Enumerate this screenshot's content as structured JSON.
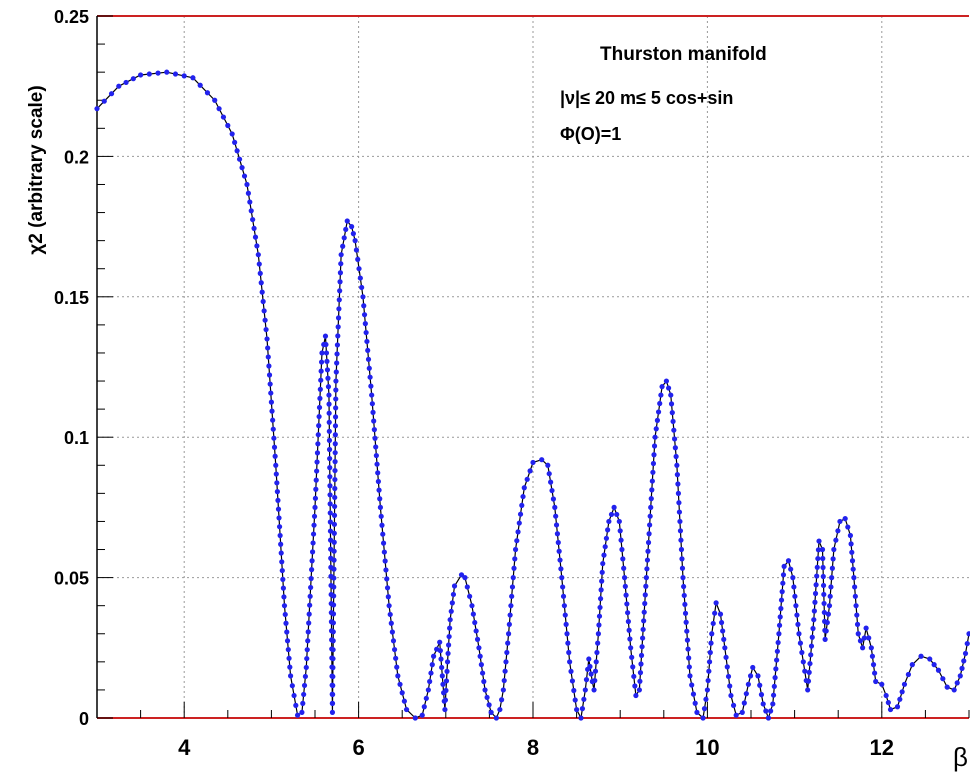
{
  "chart_data": {
    "type": "line",
    "xlabel": "β",
    "ylabel": "χ2  (arbitrary scale)",
    "xlim": [
      3,
      13
    ],
    "ylim": [
      0,
      0.25
    ],
    "x_ticks": [
      "4",
      "6",
      "8",
      "10",
      "12"
    ],
    "y_ticks": [
      "0",
      "0.05",
      "0.1",
      "0.15",
      "0.2",
      "0.25"
    ],
    "grid": true,
    "line_color": "#000000",
    "marker_color": "#2222ee",
    "frame_color": "#cc2222",
    "annotations": {
      "title": "Thurston manifold",
      "line2": "|ν|≤ 20  m≤ 5  cos+sin",
      "line3": "Φ(O)=1"
    },
    "series": [
      {
        "x": [
          3.0,
          3.25,
          3.5,
          3.8,
          4.1,
          4.35,
          4.55,
          4.72,
          4.85,
          4.95,
          5.05,
          5.15,
          5.22,
          5.3,
          5.35,
          5.4,
          5.5,
          5.58,
          5.62,
          5.66,
          5.7,
          5.74,
          5.8,
          5.87,
          5.92,
          5.96,
          6.05,
          6.15,
          6.25,
          6.35,
          6.45,
          6.55,
          6.65,
          6.73,
          6.8,
          6.86,
          6.93,
          6.99,
          7.02,
          7.05,
          7.1,
          7.18,
          7.22,
          7.3,
          7.38,
          7.45,
          7.52,
          7.58,
          7.62,
          7.66,
          7.72,
          7.8,
          7.9,
          8.0,
          8.1,
          8.17,
          8.25,
          8.33,
          8.42,
          8.5,
          8.55,
          8.6,
          8.64,
          8.68,
          8.7,
          8.75,
          8.8,
          8.87,
          8.93,
          8.99,
          9.05,
          9.12,
          9.18,
          9.22,
          9.3,
          9.4,
          9.48,
          9.53,
          9.58,
          9.65,
          9.72,
          9.8,
          9.88,
          9.95,
          10.0,
          10.05,
          10.1,
          10.15,
          10.2,
          10.27,
          10.33,
          10.4,
          10.47,
          10.52,
          10.58,
          10.64,
          10.7,
          10.75,
          10.82,
          10.88,
          10.93,
          10.98,
          11.05,
          11.15,
          11.22,
          11.28,
          11.32,
          11.35,
          11.4,
          11.45,
          11.52,
          11.58,
          11.64,
          11.68,
          11.73,
          11.78,
          11.82,
          11.88,
          11.93,
          12.0,
          12.05,
          12.1,
          12.18,
          12.26,
          12.35,
          12.45,
          12.55,
          12.65,
          12.75,
          12.83,
          12.9,
          12.96,
          13.0
        ],
        "y": [
          0.217,
          0.225,
          0.229,
          0.23,
          0.228,
          0.22,
          0.208,
          0.19,
          0.165,
          0.135,
          0.09,
          0.04,
          0.015,
          0.001,
          0.002,
          0.018,
          0.075,
          0.13,
          0.136,
          0.115,
          0.002,
          0.12,
          0.165,
          0.177,
          0.175,
          0.17,
          0.15,
          0.115,
          0.075,
          0.04,
          0.015,
          0.003,
          0.0,
          0.001,
          0.01,
          0.022,
          0.027,
          0.003,
          0.02,
          0.035,
          0.047,
          0.051,
          0.05,
          0.04,
          0.025,
          0.01,
          0.002,
          0.0,
          0.003,
          0.01,
          0.03,
          0.06,
          0.082,
          0.091,
          0.092,
          0.09,
          0.075,
          0.05,
          0.02,
          0.003,
          0.0,
          0.01,
          0.021,
          0.013,
          0.01,
          0.03,
          0.055,
          0.07,
          0.075,
          0.07,
          0.05,
          0.025,
          0.008,
          0.01,
          0.05,
          0.1,
          0.118,
          0.12,
          0.115,
          0.09,
          0.05,
          0.015,
          0.002,
          0.0,
          0.01,
          0.03,
          0.041,
          0.037,
          0.025,
          0.008,
          0.001,
          0.002,
          0.012,
          0.018,
          0.015,
          0.005,
          0.0,
          0.005,
          0.03,
          0.054,
          0.056,
          0.05,
          0.03,
          0.01,
          0.035,
          0.063,
          0.06,
          0.028,
          0.04,
          0.06,
          0.07,
          0.071,
          0.065,
          0.05,
          0.03,
          0.025,
          0.032,
          0.025,
          0.013,
          0.012,
          0.008,
          0.003,
          0.004,
          0.012,
          0.019,
          0.022,
          0.021,
          0.017,
          0.011,
          0.01,
          0.015,
          0.023,
          0.03
        ]
      }
    ]
  }
}
